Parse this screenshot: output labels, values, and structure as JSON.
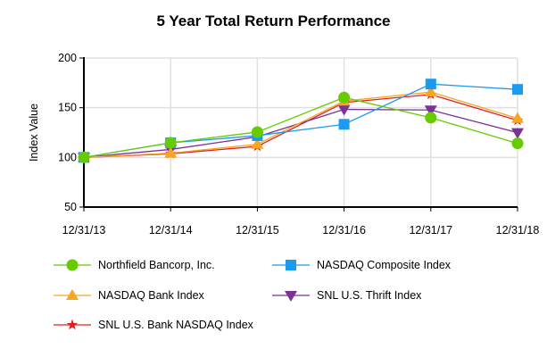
{
  "chart_data": {
    "type": "line",
    "title": "5 Year Total Return Performance",
    "xlabel": "",
    "ylabel": "Index Value",
    "categories": [
      "12/31/13",
      "12/31/14",
      "12/31/15",
      "12/31/16",
      "12/31/17",
      "12/31/18"
    ],
    "ylim": [
      50,
      200
    ],
    "yticks": [
      50,
      100,
      150,
      200
    ],
    "grid": true,
    "legend_position": "bottom",
    "series": [
      {
        "name": "Northfield Bancorp, Inc.",
        "color": "#66cc00",
        "marker": "circle",
        "values": [
          100,
          114.7,
          125.5,
          160.3,
          139.9,
          114.1
        ]
      },
      {
        "name": "NASDAQ Composite Index",
        "color": "#1a9bf0",
        "marker": "square",
        "values": [
          100,
          114.7,
          121.9,
          133.3,
          173.8,
          168.4
        ]
      },
      {
        "name": "NASDAQ Bank Index",
        "color": "#f5a623",
        "marker": "triangle-up",
        "values": [
          100,
          104.2,
          113.2,
          156.7,
          165.7,
          139.3
        ]
      },
      {
        "name": "SNL U.S. Thrift Index",
        "color": "#7b3294",
        "marker": "triangle-down",
        "values": [
          100,
          108.0,
          120.7,
          148.3,
          147.7,
          124.9
        ]
      },
      {
        "name": "SNL U.S. Bank NASDAQ Index",
        "color": "#e02020",
        "marker": "star",
        "values": [
          100,
          103.6,
          111.1,
          155.2,
          163.3,
          137.2
        ]
      }
    ]
  }
}
